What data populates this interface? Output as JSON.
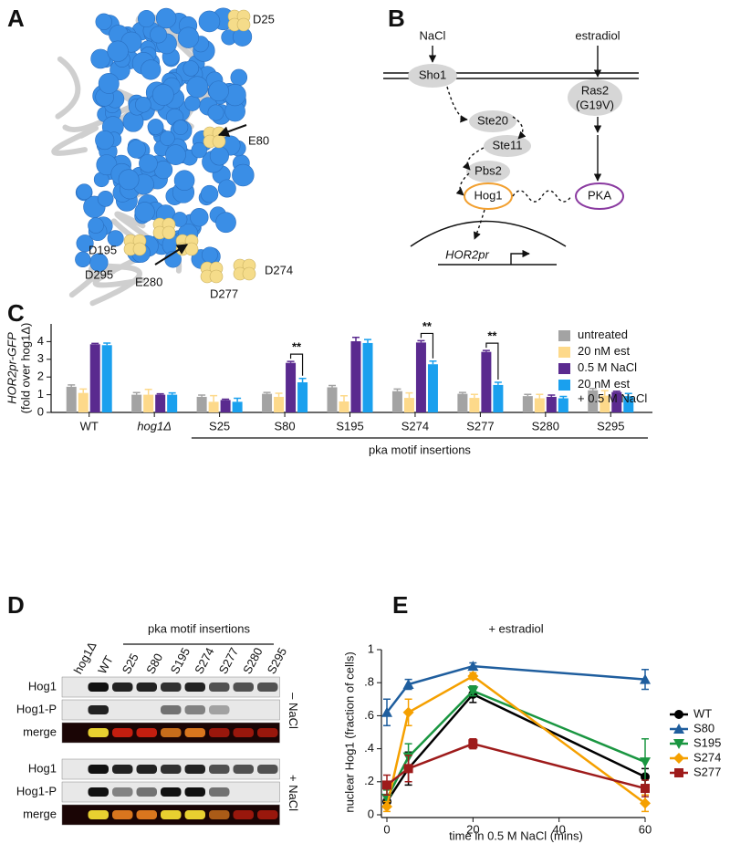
{
  "panels": [
    "A",
    "B",
    "C",
    "D",
    "E"
  ],
  "structure": {
    "labels": [
      "D25",
      "E80",
      "D195",
      "D295",
      "E280",
      "D277",
      "D274"
    ]
  },
  "diagram": {
    "inputs": [
      "NaCl",
      "estradiol"
    ],
    "sho1": "Sho1",
    "ste20": "Ste20",
    "ste11": "Ste11",
    "pbs2": "Pbs2",
    "hog1": "Hog1",
    "pka": "PKA",
    "ras2": "Ras2",
    "ras2_mutation": "(G19V)",
    "promoter": "HOR2pr"
  },
  "blot": {
    "header": "pka motif insertions",
    "lanes": [
      "hog1Δ",
      "WT",
      "S25",
      "S80",
      "S195",
      "S274",
      "S277",
      "S280",
      "S295"
    ],
    "rows": [
      "Hog1",
      "Hog1-P",
      "merge"
    ],
    "conditions": [
      "– NaCl",
      "+ NaCl"
    ]
  },
  "chart_data": [
    {
      "type": "bar",
      "ylabel": [
        "HOR2pr-GFP",
        "(fold over hog1Δ)"
      ],
      "categories": [
        "WT",
        "hog1Δ",
        "S25",
        "S80",
        "S195",
        "S274",
        "S277",
        "S280",
        "S295"
      ],
      "group_label": "pka motif insertions",
      "series": [
        {
          "name": "untreated",
          "color": "#a3a3a3",
          "values": [
            1.45,
            1.0,
            0.88,
            1.05,
            1.42,
            1.2,
            1.05,
            0.92,
            1.25
          ],
          "errors": [
            0.1,
            0.12,
            0.1,
            0.08,
            0.1,
            0.12,
            0.08,
            0.1,
            0.1
          ]
        },
        {
          "name": "20 nM est",
          "color": "#fdd98a",
          "values": [
            1.1,
            1.0,
            0.6,
            0.88,
            0.62,
            0.82,
            0.82,
            0.8,
            0.95
          ],
          "errors": [
            0.22,
            0.3,
            0.35,
            0.2,
            0.32,
            0.28,
            0.2,
            0.22,
            0.28
          ]
        },
        {
          "name": "0.5 M NaCl",
          "color": "#5a2a8f",
          "values": [
            3.85,
            1.0,
            0.7,
            2.8,
            4.02,
            3.95,
            3.42,
            0.88,
            1.15
          ],
          "errors": [
            0.05,
            0.05,
            0.05,
            0.08,
            0.22,
            0.1,
            0.08,
            0.1,
            0.05
          ]
        },
        {
          "name": "20 nM est\n+ 0.5 M NaCl",
          "color": "#1aa0ee",
          "values": [
            3.8,
            1.0,
            0.6,
            1.7,
            3.92,
            2.72,
            1.55,
            0.8,
            0.92
          ],
          "errors": [
            0.12,
            0.1,
            0.2,
            0.22,
            0.2,
            0.18,
            0.15,
            0.1,
            0.15
          ]
        }
      ],
      "significance": [
        {
          "category": "S80",
          "label": "**"
        },
        {
          "category": "S274",
          "label": "**"
        },
        {
          "category": "S277",
          "label": "**"
        }
      ],
      "ylim": [
        0,
        5
      ],
      "yticks": [
        0,
        1,
        2,
        3,
        4
      ],
      "legend": "top-right"
    },
    {
      "type": "line",
      "title": "+ estradiol",
      "xlabel": "time in 0.5 M NaCl (mins)",
      "ylabel": "nuclear Hog1 (fraction of cells)",
      "x": [
        0,
        5,
        20,
        60
      ],
      "series": [
        {
          "name": "WT",
          "color": "#000000",
          "marker": "circle",
          "values": [
            0.08,
            0.28,
            0.73,
            0.23
          ],
          "errors": [
            0.03,
            0.1,
            0.05,
            0.05
          ]
        },
        {
          "name": "S80",
          "color": "#1f5e9e",
          "marker": "triangle-up",
          "values": [
            0.62,
            0.79,
            0.9,
            0.82
          ],
          "errors": [
            0.08,
            0.03,
            0.02,
            0.06
          ]
        },
        {
          "name": "S195",
          "color": "#1a9641",
          "marker": "triangle-down",
          "values": [
            0.1,
            0.35,
            0.75,
            0.32
          ],
          "errors": [
            0.05,
            0.08,
            0.03,
            0.14
          ]
        },
        {
          "name": "S274",
          "color": "#f5a000",
          "marker": "diamond",
          "values": [
            0.05,
            0.62,
            0.84,
            0.07
          ],
          "errors": [
            0.03,
            0.08,
            0.02,
            0.05
          ]
        },
        {
          "name": "S277",
          "color": "#9e1b1b",
          "marker": "square",
          "values": [
            0.18,
            0.28,
            0.43,
            0.16
          ],
          "errors": [
            0.06,
            0.08,
            0.03,
            0.05
          ]
        }
      ],
      "xlim": [
        0,
        60
      ],
      "xticks": [
        0,
        20,
        40,
        60
      ],
      "ylim": [
        0,
        1
      ],
      "yticks": [
        0,
        {
          "value": 0.2,
          "label": ".2"
        },
        {
          "value": 0.4,
          "label": ".4"
        },
        {
          "value": 0.6,
          "label": ".6"
        },
        {
          "value": 0.8,
          "label": ".8"
        },
        1
      ],
      "legend": "right"
    }
  ]
}
